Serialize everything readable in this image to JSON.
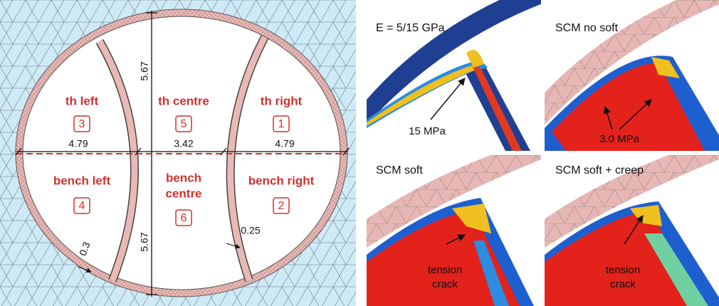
{
  "left_panel": {
    "sections": [
      {
        "label": [
          "th left"
        ],
        "number": "3"
      },
      {
        "label": [
          "th centre"
        ],
        "number": "5"
      },
      {
        "label": [
          "th right"
        ],
        "number": "1"
      },
      {
        "label": [
          "bench left"
        ],
        "number": "4"
      },
      {
        "label": [
          "bench",
          "centre"
        ],
        "number": "6"
      },
      {
        "label": [
          "bench right"
        ],
        "number": "2"
      }
    ],
    "dimensions": {
      "height_top": "5.67",
      "height_bottom": "5.67",
      "width_left": "4.79",
      "width_centre": "3.42",
      "width_right": "4.79",
      "wall_left": "0.3",
      "wall_right": "0.25"
    }
  },
  "right_panels": [
    {
      "title": "E = 5/15 GPa",
      "annotation": [
        "15 MPa"
      ]
    },
    {
      "title": "SCM no soft",
      "annotation": [
        "3.0 MPa"
      ]
    },
    {
      "title": "SCM soft",
      "annotation": [
        "tension",
        "crack"
      ]
    },
    {
      "title": "SCM soft + creep",
      "annotation": [
        "tension",
        "crack"
      ]
    }
  ]
}
